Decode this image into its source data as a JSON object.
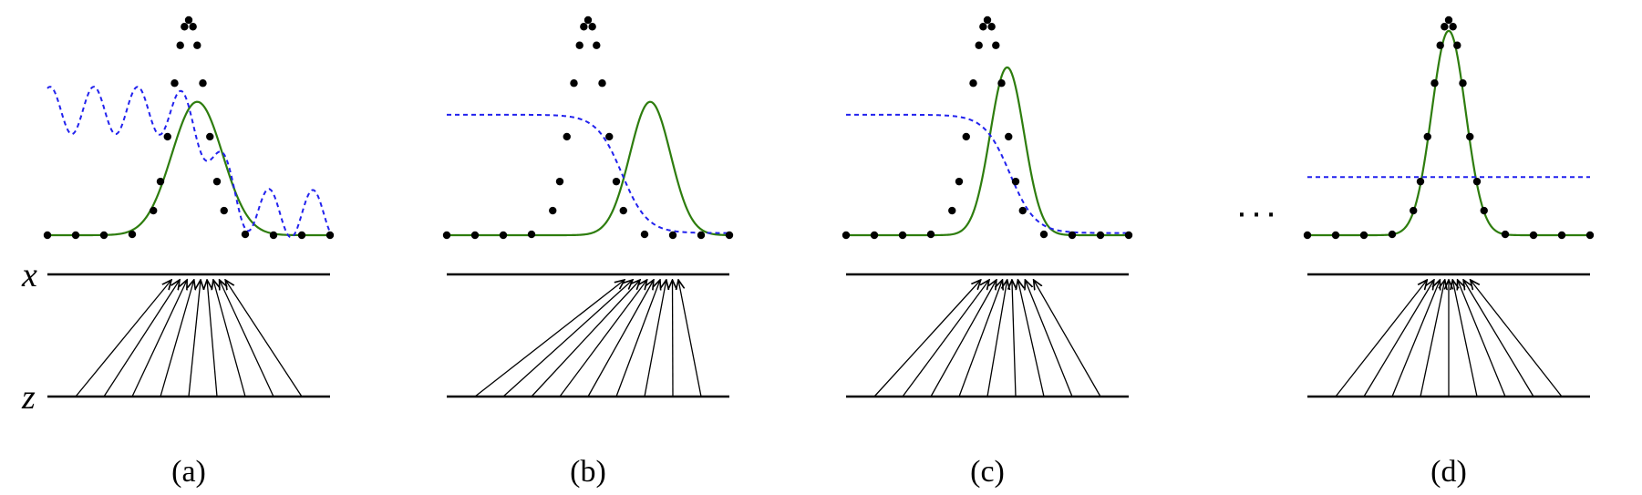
{
  "figure": {
    "axis_labels": {
      "x": "x",
      "z": "z"
    },
    "ellipsis": "· · ·",
    "colors": {
      "data_dots": "#000000",
      "model_density": "#2e7d0e",
      "discriminator": "#2222ee",
      "axis_lines": "#000000",
      "arrows": "#000000"
    },
    "panels": [
      {
        "id": "a",
        "caption": "(a)",
        "green_mean": 0.53,
        "green_sd": 0.09,
        "green_peak": 0.62,
        "blue_style": "wavy"
      },
      {
        "id": "b",
        "caption": "(b)",
        "green_mean": 0.72,
        "green_sd": 0.072,
        "green_peak": 0.62,
        "blue_style": "sigmoid"
      },
      {
        "id": "c",
        "caption": "(c)",
        "green_mean": 0.57,
        "green_sd": 0.06,
        "green_peak": 0.78,
        "blue_style": "sigmoid"
      },
      {
        "id": "d",
        "caption": "(d)",
        "green_mean": 0.5,
        "green_sd": 0.06,
        "green_peak": 0.95,
        "blue_style": "flat"
      }
    ]
  }
}
